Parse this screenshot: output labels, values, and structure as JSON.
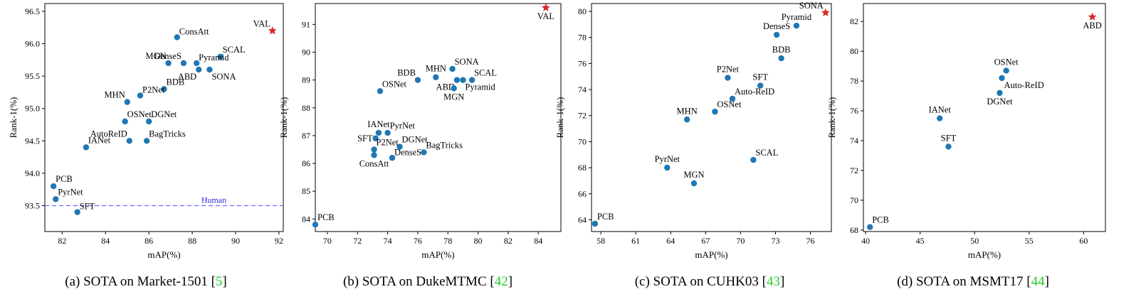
{
  "panels": [
    {
      "caption": "(a) SOTA on Market-1501 [",
      "ref": "5",
      "caption_end": "]",
      "chart_data": {
        "type": "scatter",
        "title": "",
        "xlabel": "mAP(%)",
        "ylabel": "Rank-1(%)",
        "xlim": [
          81.2,
          92.2
        ],
        "ylim": [
          93.1,
          96.62
        ],
        "xticks": [
          82,
          84,
          86,
          88,
          90,
          92
        ],
        "yticks": [
          93.5,
          94.0,
          94.5,
          95.0,
          95.5,
          96.0,
          96.5
        ],
        "y_decimals": 1,
        "points": [
          {
            "label": "VAL",
            "x": 91.7,
            "y": 96.2,
            "highlight": true,
            "pos": "tl"
          },
          {
            "label": "ConsAtt",
            "x": 87.3,
            "y": 96.1,
            "pos": "r"
          },
          {
            "label": "SCAL",
            "x": 89.3,
            "y": 95.8,
            "pos": "tr"
          },
          {
            "label": "MGN",
            "x": 86.9,
            "y": 95.7,
            "pos": "tl"
          },
          {
            "label": "DenseS",
            "x": 87.6,
            "y": 95.7,
            "pos": "tl"
          },
          {
            "label": "Pyramid",
            "x": 88.2,
            "y": 95.7,
            "pos": "r"
          },
          {
            "label": "ABD",
            "x": 88.3,
            "y": 95.6,
            "pos": "bl"
          },
          {
            "label": "SONA",
            "x": 88.8,
            "y": 95.6,
            "pos": "br"
          },
          {
            "label": "BDB",
            "x": 86.7,
            "y": 95.3,
            "pos": "tr"
          },
          {
            "label": "P2Net",
            "x": 85.6,
            "y": 95.2,
            "pos": "r"
          },
          {
            "label": "MHN",
            "x": 85.0,
            "y": 95.1,
            "pos": "tl"
          },
          {
            "label": "OSNet",
            "x": 84.9,
            "y": 94.8,
            "pos": "tr"
          },
          {
            "label": "DGNet",
            "x": 86.0,
            "y": 94.8,
            "pos": "tr"
          },
          {
            "label": "AutoReID",
            "x": 85.1,
            "y": 94.5,
            "pos": "tl"
          },
          {
            "label": "BagTricks",
            "x": 85.9,
            "y": 94.5,
            "pos": "tr"
          },
          {
            "label": "IANet",
            "x": 83.1,
            "y": 94.4,
            "pos": "tr"
          },
          {
            "label": "PCB",
            "x": 81.6,
            "y": 93.8,
            "pos": "tr"
          },
          {
            "label": "PyrNet",
            "x": 81.7,
            "y": 93.6,
            "pos": "tr"
          },
          {
            "label": "SFT",
            "x": 82.7,
            "y": 93.4,
            "pos": "r"
          }
        ],
        "reference_line": {
          "label": "Human",
          "y": 93.5,
          "color": "#6a6aff"
        }
      }
    },
    {
      "caption": "(b) SOTA on DukeMTMC [",
      "ref": "42",
      "caption_end": "]",
      "chart_data": {
        "type": "scatter",
        "title": "",
        "xlabel": "mAP(%)",
        "ylabel": "Rank-1(%)",
        "xlim": [
          69.2,
          85.5
        ],
        "ylim": [
          83.55,
          91.75
        ],
        "xticks": [
          70,
          72,
          74,
          76,
          78,
          80,
          82,
          84
        ],
        "yticks": [
          84,
          85,
          86,
          87,
          88,
          89,
          90,
          91
        ],
        "y_decimals": 0,
        "points": [
          {
            "label": "VAL",
            "x": 84.5,
            "y": 91.6,
            "highlight": true,
            "pos": "bc"
          },
          {
            "label": "SONA",
            "x": 78.3,
            "y": 89.4,
            "pos": "tr"
          },
          {
            "label": "MHN",
            "x": 77.2,
            "y": 89.1,
            "pos": "tc"
          },
          {
            "label": "BDB",
            "x": 76.0,
            "y": 89.0,
            "pos": "tl"
          },
          {
            "label": "SCAL",
            "x": 79.6,
            "y": 89.0,
            "pos": "tr"
          },
          {
            "label": "ABD",
            "x": 78.6,
            "y": 89.0,
            "pos": "bl"
          },
          {
            "label": "Pyramid",
            "x": 79.0,
            "y": 89.0,
            "pos": "br"
          },
          {
            "label": "MGN",
            "x": 78.4,
            "y": 88.7,
            "pos": "b"
          },
          {
            "label": "OSNet",
            "x": 73.5,
            "y": 88.6,
            "pos": "tr"
          },
          {
            "label": "IANet",
            "x": 73.4,
            "y": 87.1,
            "pos": "tc"
          },
          {
            "label": "PyrNet",
            "x": 74.0,
            "y": 87.1,
            "pos": "tr"
          },
          {
            "label": "SFT",
            "x": 73.2,
            "y": 86.9,
            "pos": "l"
          },
          {
            "label": "DGNet",
            "x": 74.8,
            "y": 86.6,
            "pos": "tr"
          },
          {
            "label": "P2Net",
            "x": 73.1,
            "y": 86.5,
            "pos": "tr"
          },
          {
            "label": "BagTricks",
            "x": 76.4,
            "y": 86.4,
            "pos": "tr"
          },
          {
            "label": "DenseS",
            "x": 74.3,
            "y": 86.2,
            "pos": "r"
          },
          {
            "label": "ConsAtt",
            "x": 73.1,
            "y": 86.3,
            "pos": "bc"
          },
          {
            "label": "PCB",
            "x": 69.2,
            "y": 83.8,
            "pos": "tr"
          }
        ]
      }
    },
    {
      "caption": "(c) SOTA on CUHK03 [",
      "ref": "43",
      "caption_end": "]",
      "chart_data": {
        "type": "scatter",
        "title": "",
        "xlabel": "mAP(%)",
        "ylabel": "Rank-1(%)",
        "xlim": [
          57.2,
          77.8
        ],
        "ylim": [
          63.1,
          80.6
        ],
        "xticks": [
          58,
          61,
          64,
          67,
          70,
          73,
          76
        ],
        "yticks": [
          64,
          66,
          68,
          70,
          72,
          74,
          76,
          78,
          80
        ],
        "y_decimals": 0,
        "points": [
          {
            "label": "SONA",
            "x": 77.3,
            "y": 79.9,
            "highlight": true,
            "pos": "tl"
          },
          {
            "label": "Pyramid",
            "x": 74.8,
            "y": 78.9,
            "pos": "tc"
          },
          {
            "label": "DenseS",
            "x": 73.1,
            "y": 78.2,
            "pos": "tc"
          },
          {
            "label": "BDB",
            "x": 73.5,
            "y": 76.4,
            "pos": "tc"
          },
          {
            "label": "P2Net",
            "x": 68.9,
            "y": 74.9,
            "pos": "tc"
          },
          {
            "label": "SFT",
            "x": 71.7,
            "y": 74.3,
            "pos": "tc"
          },
          {
            "label": "Auto-ReID",
            "x": 69.3,
            "y": 73.3,
            "pos": "tr"
          },
          {
            "label": "OSNet",
            "x": 67.8,
            "y": 72.3,
            "pos": "tr"
          },
          {
            "label": "MHN",
            "x": 65.4,
            "y": 71.7,
            "pos": "tc"
          },
          {
            "label": "SCAL",
            "x": 71.1,
            "y": 68.6,
            "pos": "tr"
          },
          {
            "label": "PyrNet",
            "x": 63.7,
            "y": 68.0,
            "pos": "tc"
          },
          {
            "label": "MGN",
            "x": 66.0,
            "y": 66.8,
            "pos": "tc"
          },
          {
            "label": "PCB",
            "x": 57.5,
            "y": 63.7,
            "pos": "tr"
          }
        ]
      }
    },
    {
      "caption": "(d) SOTA on MSMT17 [",
      "ref": "44",
      "caption_end": "]",
      "chart_data": {
        "type": "scatter",
        "title": "",
        "xlabel": "mAP(%)",
        "ylabel": "Rank-1(%)",
        "xlim": [
          39.8,
          62.0
        ],
        "ylim": [
          67.9,
          83.2
        ],
        "xticks": [
          40,
          45,
          50,
          55,
          60
        ],
        "yticks": [
          68,
          70,
          72,
          74,
          76,
          78,
          80,
          82
        ],
        "y_decimals": 0,
        "points": [
          {
            "label": "ABD",
            "x": 60.8,
            "y": 82.3,
            "highlight": true,
            "pos": "bc"
          },
          {
            "label": "OSNet",
            "x": 52.9,
            "y": 78.7,
            "pos": "tc"
          },
          {
            "label": "Auto-ReID",
            "x": 52.5,
            "y": 78.2,
            "pos": "br"
          },
          {
            "label": "DGNet",
            "x": 52.3,
            "y": 77.2,
            "pos": "bc"
          },
          {
            "label": "IANet",
            "x": 46.8,
            "y": 75.5,
            "pos": "tc"
          },
          {
            "label": "SFT",
            "x": 47.6,
            "y": 73.6,
            "pos": "tc"
          },
          {
            "label": "PCB",
            "x": 40.4,
            "y": 68.2,
            "pos": "tr"
          }
        ]
      }
    }
  ],
  "colors": {
    "point": "#1f77b4",
    "highlight": "#d62728"
  }
}
